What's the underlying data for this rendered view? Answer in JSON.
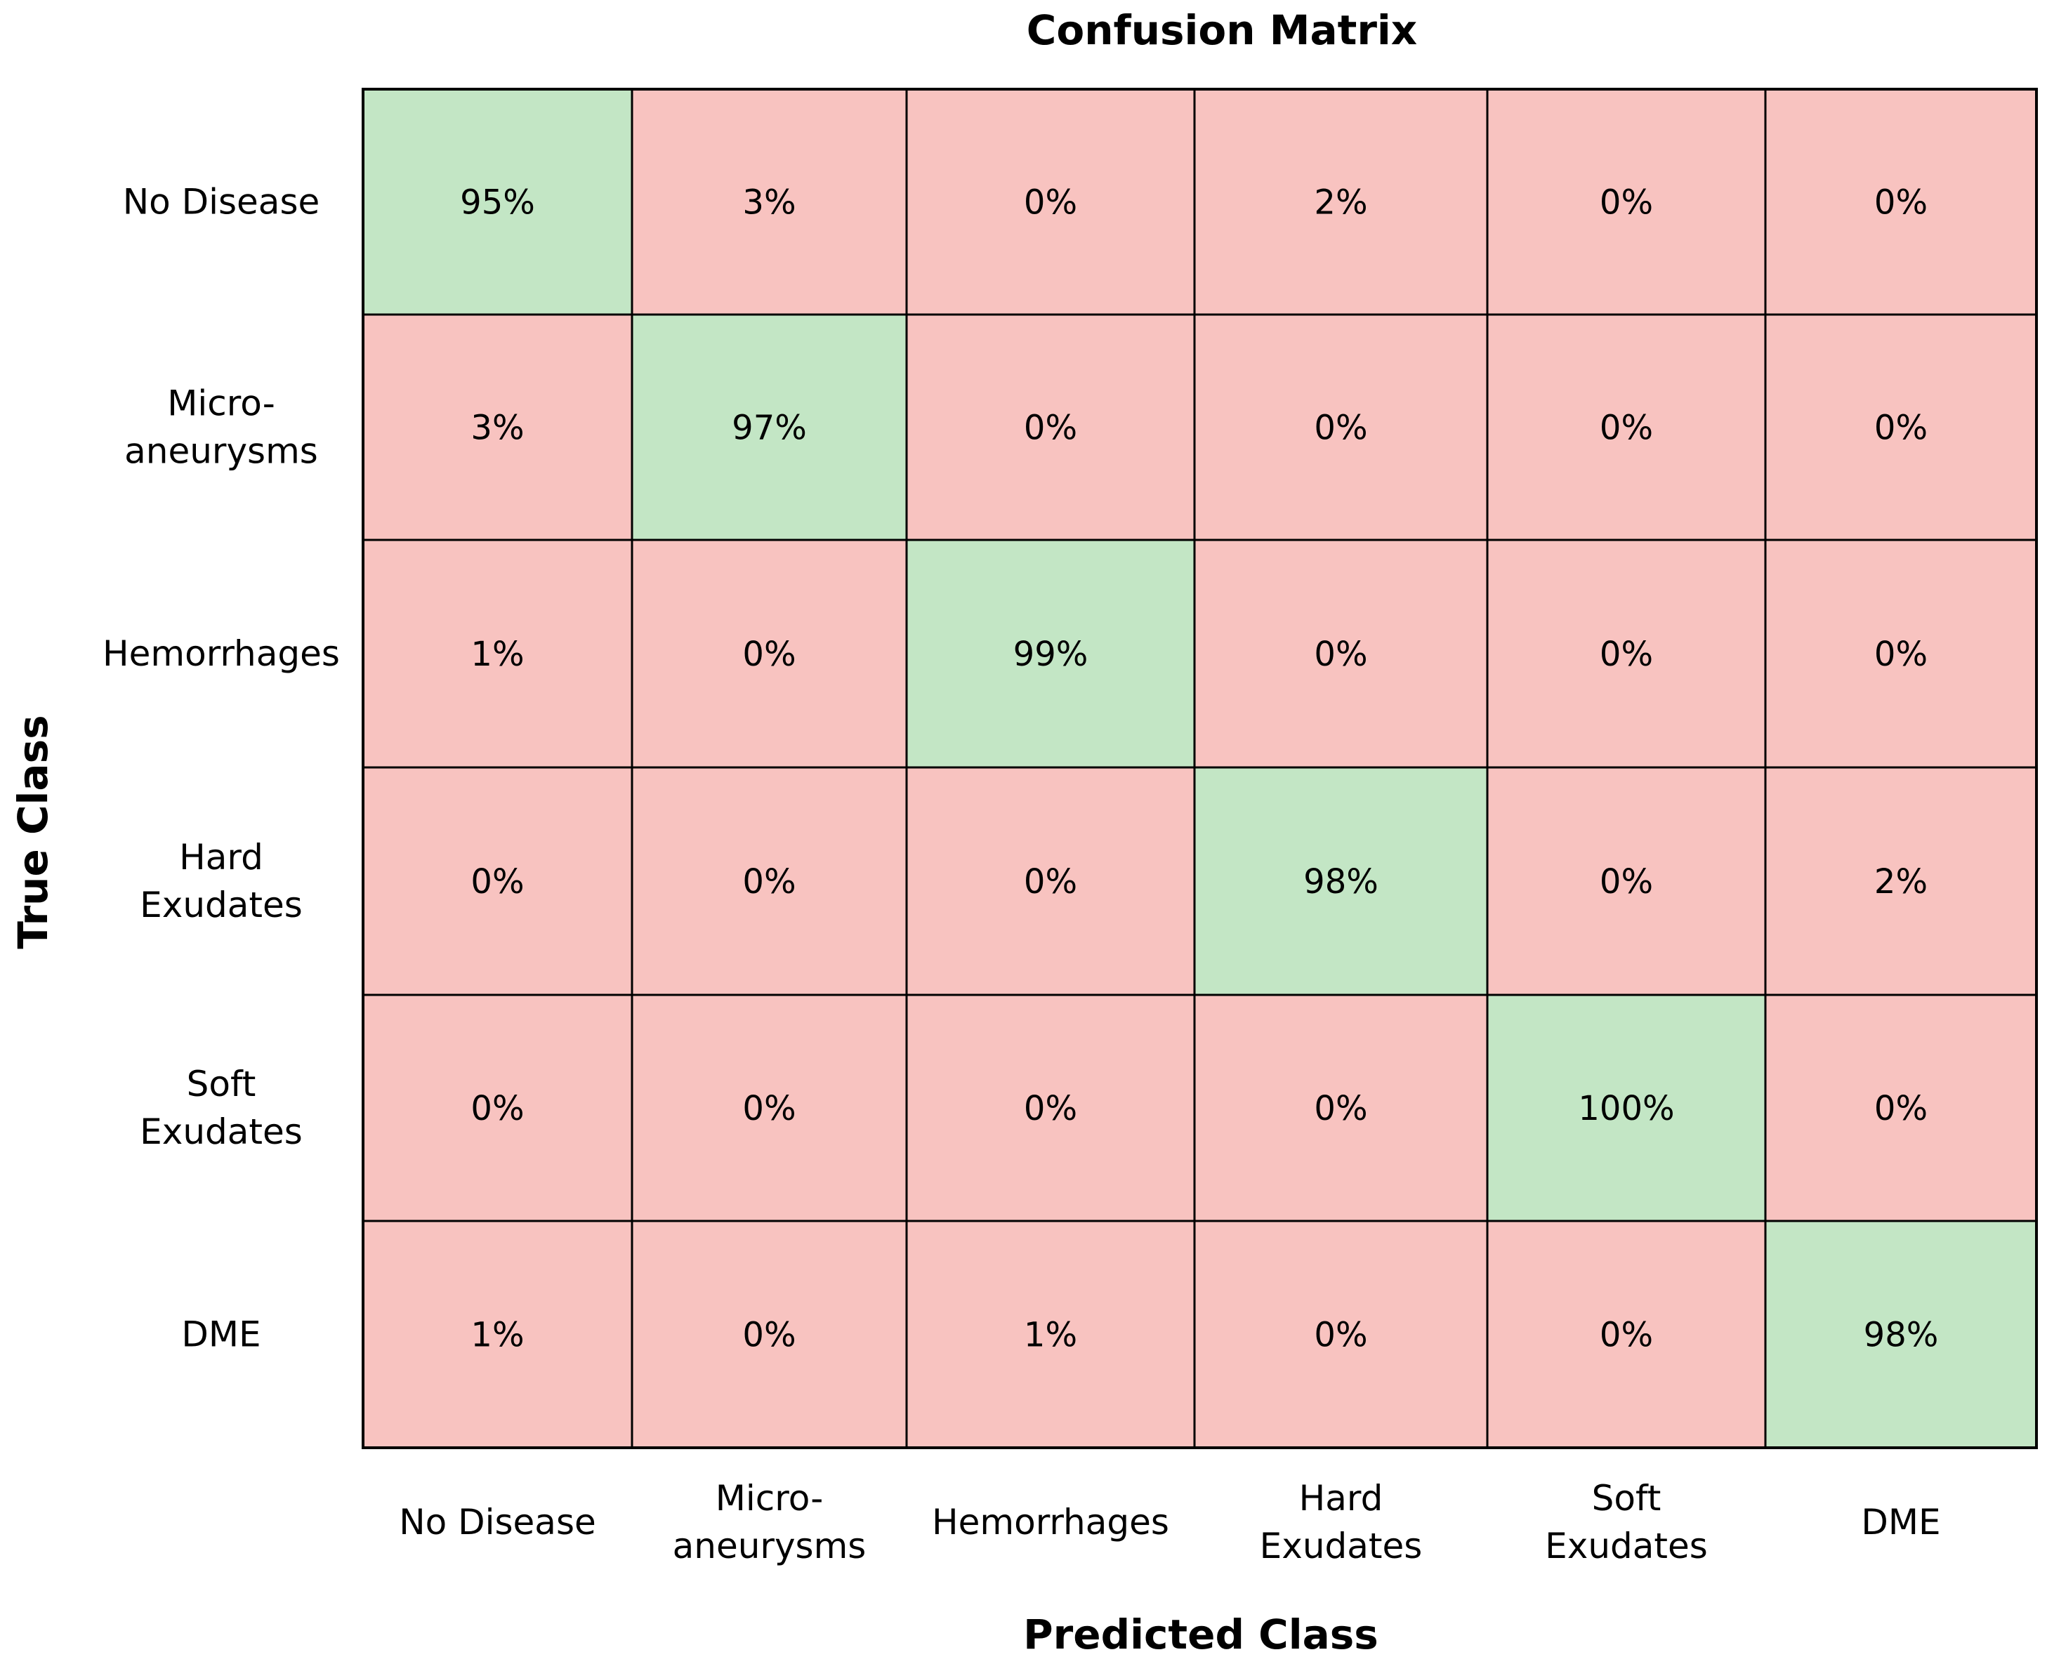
{
  "chart_data": {
    "type": "heatmap",
    "title": "Confusion Matrix",
    "xlabel": "Predicted Class",
    "ylabel": "True Class",
    "x_categories": [
      [
        "No Disease"
      ],
      [
        "Micro-",
        "aneurysms"
      ],
      [
        "Hemorrhages"
      ],
      [
        "Hard",
        "Exudates"
      ],
      [
        "Soft",
        "Exudates"
      ],
      [
        "DME"
      ]
    ],
    "y_categories": [
      [
        "No Disease"
      ],
      [
        "Micro-",
        "aneurysms"
      ],
      [
        "Hemorrhages"
      ],
      [
        "Hard",
        "Exudates"
      ],
      [
        "Soft",
        "Exudates"
      ],
      [
        "DME"
      ]
    ],
    "values": [
      [
        95,
        3,
        0,
        2,
        0,
        0
      ],
      [
        3,
        97,
        0,
        0,
        0,
        0
      ],
      [
        1,
        0,
        99,
        0,
        0,
        0
      ],
      [
        0,
        0,
        0,
        98,
        0,
        2
      ],
      [
        0,
        0,
        0,
        0,
        100,
        0
      ],
      [
        1,
        0,
        1,
        0,
        0,
        98
      ]
    ],
    "value_suffix": "%",
    "colors": {
      "diagonal": "#c3e6c5",
      "off_diagonal": "#f8c3c0",
      "border": "#000000",
      "text": "#000000"
    }
  }
}
